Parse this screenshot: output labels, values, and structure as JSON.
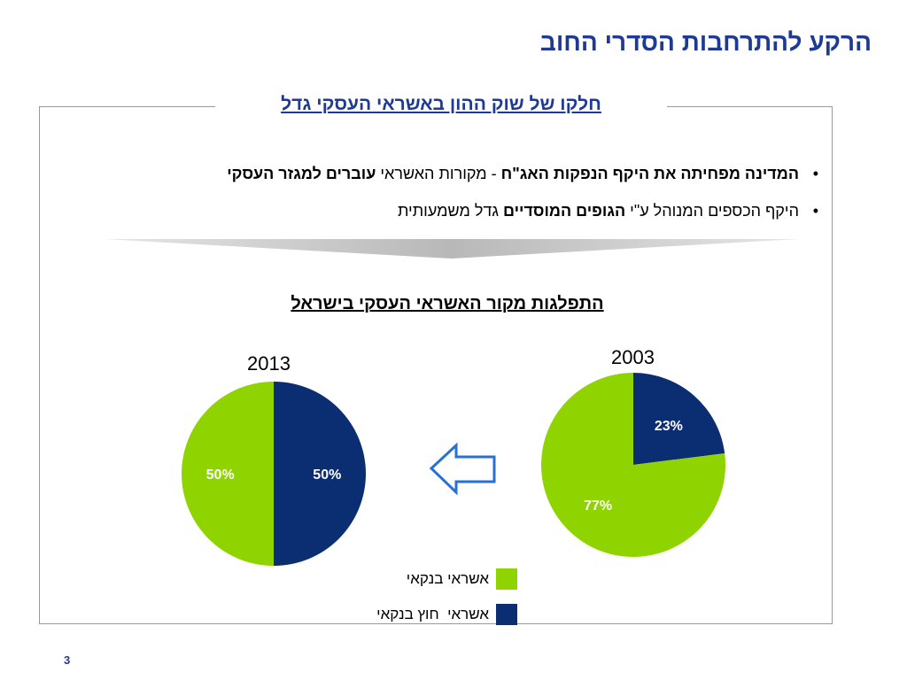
{
  "slide": {
    "title": "הרקע להתרחבות הסדרי החוב",
    "box_title": "חלקו של שוק ההון באשראי העסקי גדל",
    "bullets": [
      {
        "bold1": "המדינה מפחיתה את היקף הנפקות האג\"ח",
        "text1": " - מקורות האשראי ",
        "bold2": "עוברים למגזר העסקי",
        "text2": ""
      },
      {
        "bold1": "",
        "text1": "היקף הכספים המנוהל ע\"י ",
        "bold2": "הגופים המוסדיים",
        "text2": " גדל משמעותית"
      }
    ],
    "chart_title": "התפלגות מקור האשראי העסקי בישראל",
    "page_number": "3"
  },
  "colors": {
    "bank": "#8fd400",
    "nonbank": "#0b2d72",
    "arrow": "#2a6fd6",
    "title": "#1f3a93"
  },
  "icons": {
    "arrow": "left-arrow-outline-icon"
  },
  "chart_data": [
    {
      "type": "pie",
      "title": "2003",
      "slices": [
        {
          "label": "אשראי חוץ בנקאי",
          "value": 23,
          "display": "23%"
        },
        {
          "label": "אשראי בנקאי",
          "value": 77,
          "display": "77%"
        }
      ]
    },
    {
      "type": "pie",
      "title": "2013",
      "slices": [
        {
          "label": "אשראי חוץ בנקאי",
          "value": 50,
          "display": "50%"
        },
        {
          "label": "אשראי בנקאי",
          "value": 50,
          "display": "50%"
        }
      ]
    }
  ],
  "legend": [
    {
      "label": "אשראי בנקאי",
      "color_key": "bank"
    },
    {
      "label": "אשראי  חוץ בנקאי",
      "color_key": "nonbank"
    }
  ]
}
